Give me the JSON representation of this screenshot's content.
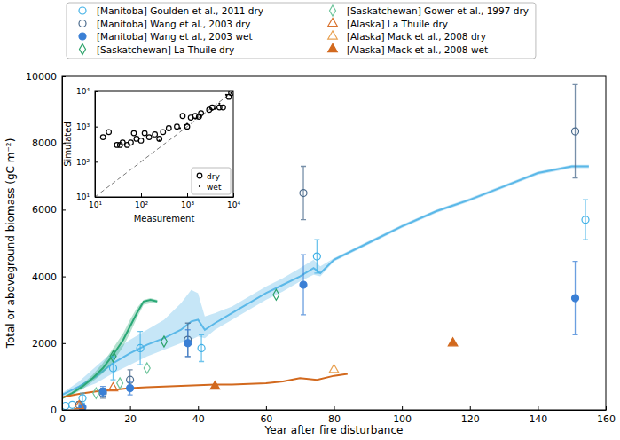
{
  "chart_data": [
    {
      "type": "scatter",
      "x_label": "Year after fire disturbance",
      "y_label": "Total or aboveground biomass (gC m⁻²)",
      "xlim": [
        0,
        160
      ],
      "ylim": [
        0,
        10000
      ],
      "xticks": [
        0,
        20,
        40,
        60,
        80,
        100,
        120,
        140,
        160
      ],
      "yticks": [
        0,
        2000,
        4000,
        6000,
        8000,
        10000
      ],
      "legend": "upper center",
      "series": [
        {
          "name": "[Manitoba] Goulden et al., 2011 dry",
          "color": "#3fb0e6",
          "marker": "circle-open",
          "x": [
            1,
            3,
            6,
            15,
            23,
            41,
            75,
            154
          ],
          "values": [
            120,
            150,
            350,
            1250,
            1850,
            1850,
            4600,
            5700
          ],
          "errors": [
            null,
            null,
            150,
            350,
            500,
            400,
            500,
            600
          ]
        },
        {
          "name": "[Manitoba] Wang et al., 2003 dry",
          "color": "#4a6a8c",
          "marker": "circle-open",
          "x": [
            5,
            12,
            20,
            37,
            71,
            151
          ],
          "values": [
            150,
            500,
            900,
            2100,
            6500,
            8350
          ],
          "errors": [
            100,
            150,
            300,
            500,
            800,
            1400
          ]
        },
        {
          "name": "[Manitoba] Wang et al., 2003 wet",
          "color": "#3a7fd5",
          "marker": "circle",
          "x": [
            6,
            12,
            20,
            37,
            71,
            151
          ],
          "values": [
            80,
            550,
            650,
            2000,
            3750,
            3350
          ],
          "errors": [
            null,
            150,
            200,
            400,
            900,
            1100
          ]
        },
        {
          "name": "[Saskatchewan] La Thuile dry",
          "color": "#2ca26a",
          "marker": "diamond-open",
          "x": [
            15,
            30,
            63
          ],
          "values": [
            1600,
            2050,
            3450
          ]
        },
        {
          "name": "[Saskatchewan] Gower et al., 1997 dry",
          "color": "#6cc49a",
          "marker": "diamond-open",
          "x": [
            10,
            17,
            25
          ],
          "values": [
            500,
            800,
            1250
          ]
        },
        {
          "name": "[Alaska] La Thuile dry",
          "color": "#d9722e",
          "marker": "triangle-open",
          "x": [
            5,
            15
          ],
          "values": [
            120,
            650
          ]
        },
        {
          "name": "[Alaska] Mack et al., 2008 dry",
          "color": "#e8a050",
          "marker": "triangle-open",
          "x": [
            80
          ],
          "values": [
            1200
          ]
        },
        {
          "name": "[Alaska] Mack et al., 2008 wet",
          "color": "#d2691e",
          "marker": "triangle",
          "x": [
            45,
            115
          ],
          "values": [
            700,
            2000
          ]
        },
        {
          "type": "line",
          "color": "#5bb8e8",
          "x": [
            0,
            5,
            10,
            15,
            20,
            25,
            30,
            35,
            38,
            40,
            42,
            45,
            50,
            55,
            60,
            65,
            70,
            74,
            76,
            80,
            90,
            100,
            110,
            120,
            130,
            140,
            150,
            155
          ],
          "values": [
            450,
            700,
            1000,
            1400,
            1700,
            1950,
            2150,
            2400,
            2650,
            2700,
            2400,
            2600,
            2900,
            3200,
            3500,
            3750,
            4000,
            4250,
            4100,
            4500,
            5000,
            5500,
            5950,
            6300,
            6700,
            7100,
            7300,
            7300
          ],
          "lower": [
            400,
            600,
            800,
            1100,
            1350,
            1600,
            1800,
            2000,
            2100,
            2200,
            2150,
            2400,
            2700,
            3000,
            3300,
            3550,
            3850,
            4050,
            4000,
            4450,
            4950,
            5450,
            5900,
            6250,
            6650,
            7050,
            7250,
            7250
          ],
          "upper": [
            500,
            850,
            1300,
            1750,
            2100,
            2400,
            2700,
            3200,
            3600,
            3500,
            2800,
            2900,
            3100,
            3400,
            3700,
            3950,
            4250,
            4500,
            4300,
            4550,
            5050,
            5550,
            6000,
            6350,
            6750,
            7150,
            7350,
            7350
          ]
        },
        {
          "type": "line",
          "color": "#2aa876",
          "x": [
            0,
            3,
            6,
            9,
            12,
            15,
            18,
            20,
            22,
            24,
            26,
            28
          ],
          "values": [
            350,
            500,
            700,
            950,
            1250,
            1650,
            2100,
            2500,
            2900,
            3250,
            3300,
            3250
          ],
          "lower": [
            320,
            450,
            620,
            850,
            1100,
            1450,
            1900,
            2300,
            2750,
            3150,
            3200,
            3200
          ],
          "upper": [
            380,
            550,
            780,
            1050,
            1400,
            1850,
            2300,
            2700,
            3050,
            3300,
            3350,
            3300
          ]
        },
        {
          "type": "line",
          "color": "#d2691e",
          "x": [
            0,
            5,
            10,
            15,
            20,
            25,
            30,
            35,
            40,
            45,
            50,
            55,
            60,
            65,
            70,
            75,
            80,
            84
          ],
          "values": [
            380,
            480,
            550,
            600,
            650,
            680,
            700,
            720,
            740,
            760,
            760,
            780,
            800,
            850,
            950,
            900,
            1020,
            1080
          ]
        }
      ]
    },
    {
      "type": "scatter",
      "log": true,
      "x_label": "Measurement",
      "y_label": "Simulated",
      "xlim": [
        10,
        10000
      ],
      "ylim": [
        10,
        10000
      ],
      "xticks": [
        {
          "value": 10,
          "label": "10¹"
        },
        {
          "value": 100,
          "label": "10²"
        },
        {
          "value": 1000,
          "label": "10³"
        },
        {
          "value": 10000,
          "label": "10⁴"
        }
      ],
      "yticks": [
        {
          "value": 10,
          "label": "10¹"
        },
        {
          "value": 100,
          "label": "10²"
        },
        {
          "value": 1000,
          "label": "10³"
        },
        {
          "value": 10000,
          "label": "10⁴"
        }
      ],
      "legend": "lower right",
      "series": [
        {
          "name": "dry",
          "color": "#000000",
          "marker": "circle-open",
          "x": [
            15,
            20,
            30,
            35,
            40,
            50,
            60,
            70,
            80,
            100,
            120,
            150,
            200,
            250,
            300,
            400,
            600,
            800,
            1000,
            1200,
            1500,
            1800,
            2000,
            3000,
            3500,
            5000,
            6000,
            8000,
            9000
          ],
          "values": [
            500,
            700,
            300,
            300,
            350,
            300,
            350,
            650,
            450,
            400,
            650,
            500,
            600,
            450,
            700,
            900,
            1000,
            2000,
            1000,
            1800,
            2000,
            1900,
            2400,
            3000,
            3500,
            3500,
            3500,
            7000,
            9000
          ]
        },
        {
          "name": "wet",
          "color": "#000000",
          "marker": "point",
          "x": [
            250,
            400,
            700,
            900,
            1000,
            1500,
            2000,
            3500,
            4000,
            5000,
            7000,
            9000
          ],
          "values": [
            400,
            800,
            900,
            1100,
            1200,
            1700,
            1900,
            3000,
            3200,
            4500,
            8000,
            9000
          ]
        }
      ]
    }
  ]
}
